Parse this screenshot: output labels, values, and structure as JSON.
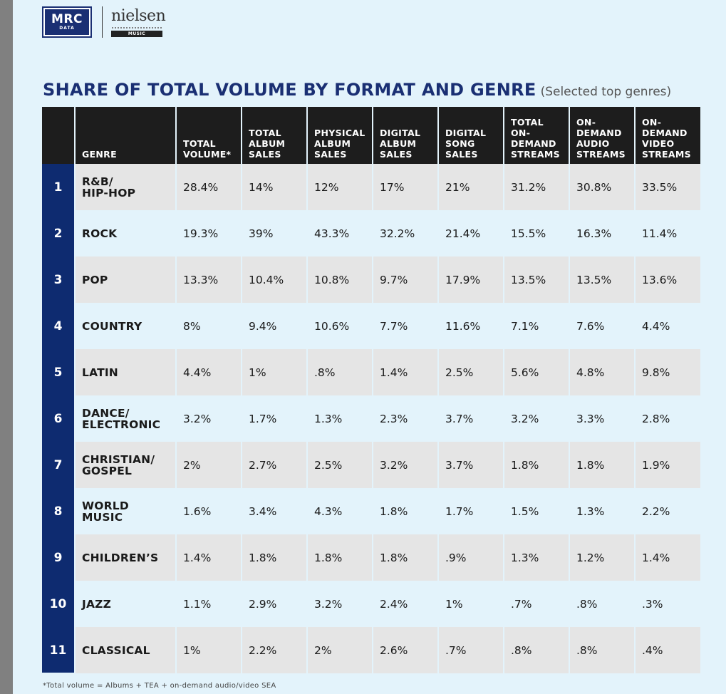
{
  "logos": {
    "mrc_text": "MRC",
    "mrc_subtext": "DATA",
    "nielsen_text": "nielsen",
    "nielsen_subtext": "MUSIC"
  },
  "title": {
    "main": "SHARE OF TOTAL VOLUME BY FORMAT AND GENRE",
    "sub": "(Selected top genres)"
  },
  "colors": {
    "page_background": "#e3f3fb",
    "header_background": "#1d1d1d",
    "rank_column": "#0e2b70",
    "title_color": "#1a2f73",
    "odd_row": "#e5e5e5",
    "even_row": "#e3f3fb"
  },
  "footnote": "*Total volume = Albums + TEA + on-demand audio/video SEA",
  "chart_data": {
    "type": "table",
    "title": "SHARE OF TOTAL VOLUME BY FORMAT AND GENRE",
    "subtitle": "(Selected top genres)",
    "columns": [
      "",
      "GENRE",
      "TOTAL\nVOLUME*",
      "TOTAL\nALBUM\nSALES",
      "PHYSICAL\nALBUM\nSALES",
      "DIGITAL\nALBUM\nSALES",
      "DIGITAL\nSONG\nSALES",
      "TOTAL ON-\nDEMAND\nSTREAMS",
      "ON-\nDEMAND\nAUDIO\nSTREAMS",
      "ON-\nDEMAND\nVIDEO\nSTREAMS"
    ],
    "rows": [
      {
        "rank": "1",
        "genre": "R&B/\nHIP-HOP",
        "values": [
          "28.4%",
          "14%",
          "12%",
          "17%",
          "21%",
          "31.2%",
          "30.8%",
          "33.5%"
        ]
      },
      {
        "rank": "2",
        "genre": "ROCK",
        "values": [
          "19.3%",
          "39%",
          "43.3%",
          "32.2%",
          "21.4%",
          "15.5%",
          "16.3%",
          "11.4%"
        ]
      },
      {
        "rank": "3",
        "genre": "POP",
        "values": [
          "13.3%",
          "10.4%",
          "10.8%",
          "9.7%",
          "17.9%",
          "13.5%",
          "13.5%",
          "13.6%"
        ]
      },
      {
        "rank": "4",
        "genre": "COUNTRY",
        "values": [
          "8%",
          "9.4%",
          "10.6%",
          "7.7%",
          "11.6%",
          "7.1%",
          "7.6%",
          "4.4%"
        ]
      },
      {
        "rank": "5",
        "genre": "LATIN",
        "values": [
          "4.4%",
          "1%",
          ".8%",
          "1.4%",
          "2.5%",
          "5.6%",
          "4.8%",
          "9.8%"
        ]
      },
      {
        "rank": "6",
        "genre": "DANCE/\nELECTRONIC",
        "values": [
          "3.2%",
          "1.7%",
          "1.3%",
          "2.3%",
          "3.7%",
          "3.2%",
          "3.3%",
          "2.8%"
        ]
      },
      {
        "rank": "7",
        "genre": "CHRISTIAN/\nGOSPEL",
        "values": [
          "2%",
          "2.7%",
          "2.5%",
          "3.2%",
          "3.7%",
          "1.8%",
          "1.8%",
          "1.9%"
        ]
      },
      {
        "rank": "8",
        "genre": "WORLD\nMUSIC",
        "values": [
          "1.6%",
          "3.4%",
          "4.3%",
          "1.8%",
          "1.7%",
          "1.5%",
          "1.3%",
          "2.2%"
        ]
      },
      {
        "rank": "9",
        "genre": "CHILDREN’S",
        "values": [
          "1.4%",
          "1.8%",
          "1.8%",
          "1.8%",
          ".9%",
          "1.3%",
          "1.2%",
          "1.4%"
        ]
      },
      {
        "rank": "10",
        "genre": "JAZZ",
        "values": [
          "1.1%",
          "2.9%",
          "3.2%",
          "2.4%",
          "1%",
          ".7%",
          ".8%",
          ".3%"
        ]
      },
      {
        "rank": "11",
        "genre": "CLASSICAL",
        "values": [
          "1%",
          "2.2%",
          "2%",
          "2.6%",
          ".7%",
          ".8%",
          ".8%",
          ".4%"
        ]
      }
    ]
  }
}
